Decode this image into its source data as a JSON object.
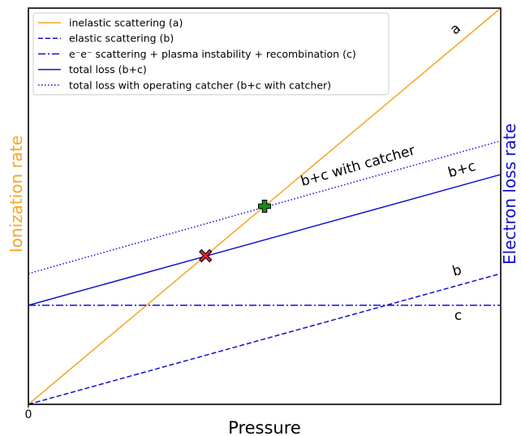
{
  "chart_data": {
    "type": "line",
    "xlabel": "Pressure",
    "ylabel_left": "Ionization rate",
    "ylabel_right": "Electron loss rate",
    "xlim": [
      0,
      1
    ],
    "ylim": [
      0,
      1
    ],
    "x_ticks": [
      {
        "value": 0,
        "label": "0"
      }
    ],
    "grid": false,
    "legend_position": "top-left",
    "colors": {
      "ionization": "#f5a623",
      "loss": "#1010d0",
      "axes": "#000000",
      "cross_marker": "#e8202a",
      "plus_marker": "#1a8a1a"
    },
    "series": [
      {
        "name": "inelastic scattering (a)",
        "style": "solid",
        "color": "#f5a623",
        "x": [
          0,
          1
        ],
        "y": [
          0,
          1.0
        ],
        "line_label": "a"
      },
      {
        "name": "elastic scattering (b)",
        "style": "dashed",
        "color": "#1010d0",
        "x": [
          0,
          1
        ],
        "y": [
          0,
          0.33
        ],
        "line_label": "b"
      },
      {
        "name": "e⁻e⁻ scattering + plasma instability + recombination (c)",
        "style": "dashdot",
        "color": "#1010d0",
        "x": [
          0,
          1
        ],
        "y": [
          0.25,
          0.25
        ],
        "line_label": "c"
      },
      {
        "name": "total loss (b+c)",
        "style": "solid",
        "color": "#1010d0",
        "x": [
          0,
          1
        ],
        "y": [
          0.25,
          0.58
        ],
        "line_label": "b+c"
      },
      {
        "name": "total loss with operating catcher (b+c with catcher)",
        "style": "dotted",
        "color": "#1010d0",
        "x": [
          0,
          1
        ],
        "y": [
          0.33,
          0.665
        ],
        "line_label": "b+c with catcher"
      }
    ],
    "markers": [
      {
        "symbol": "cross",
        "x": 0.375,
        "y": 0.375,
        "color": "#e8202a"
      },
      {
        "symbol": "plus",
        "x": 0.5,
        "y": 0.5,
        "color": "#1a8a1a"
      }
    ]
  }
}
